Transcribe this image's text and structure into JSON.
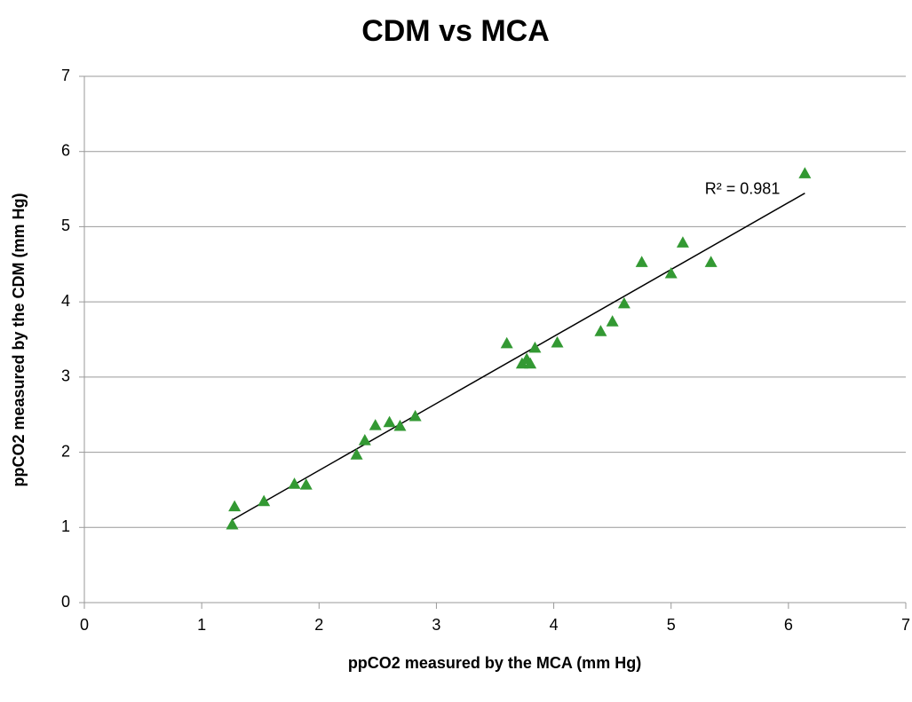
{
  "chart_data": {
    "type": "scatter",
    "title": "CDM vs MCA",
    "x_label": "ppCO2 measured by the MCA (mm Hg)",
    "y_label": "ppCO2 measured by the CDM (mm Hg)",
    "annotation": "R² = 0.981",
    "xlim": [
      0,
      7
    ],
    "xticks": [
      0,
      1,
      2,
      3,
      4,
      5,
      6,
      7
    ],
    "ylim": [
      0,
      7
    ],
    "yticks": [
      0,
      1,
      2,
      3,
      4,
      5,
      6,
      7
    ],
    "grid": true,
    "trendline": true,
    "series": [
      {
        "color": "#339933",
        "x": [
          1.26,
          1.28,
          1.53,
          1.79,
          1.89,
          2.32,
          2.39,
          2.48,
          2.6,
          2.69,
          2.82,
          3.6,
          3.73,
          3.77,
          3.8,
          3.84,
          4.03,
          4.4,
          4.5,
          4.6,
          4.75,
          5.0,
          5.1,
          5.34,
          6.14
        ],
        "values": [
          1.04,
          1.28,
          1.35,
          1.58,
          1.57,
          1.97,
          2.16,
          2.36,
          2.4,
          2.35,
          2.48,
          3.45,
          3.18,
          3.24,
          3.18,
          3.39,
          3.46,
          3.61,
          3.74,
          3.98,
          4.53,
          4.38,
          4.79,
          4.53,
          5.71
        ]
      }
    ]
  }
}
